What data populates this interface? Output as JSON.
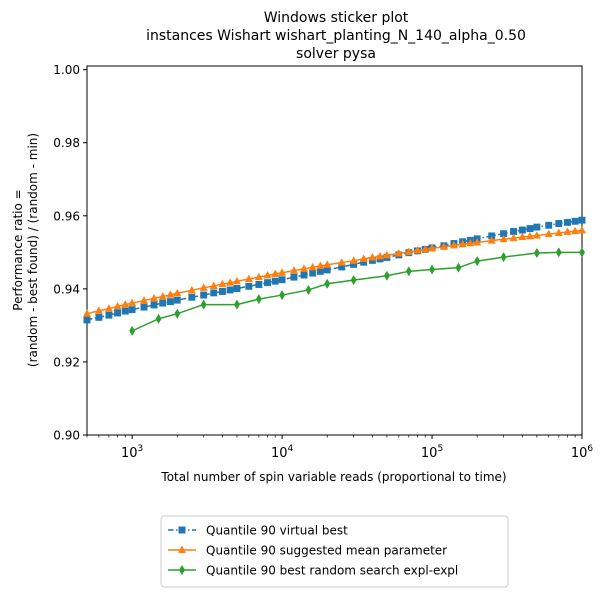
{
  "chart_data": {
    "type": "line",
    "title": [
      "Windows sticker plot",
      "instances Wishart wishart_planting_N_140_alpha_0.50",
      "solver pysa"
    ],
    "xlabel": "Total number of spin variable reads (proportional to time)",
    "ylabel": [
      "Performance ratio =",
      "(random - best found) / (random - min)"
    ],
    "xscale": "log",
    "xlim": [
      500,
      1000000
    ],
    "ylim": [
      0.9,
      1.001
    ],
    "xticks": [
      {
        "value": 1000,
        "base": "10",
        "exp": "3"
      },
      {
        "value": 10000,
        "base": "10",
        "exp": "4"
      },
      {
        "value": 100000,
        "base": "10",
        "exp": "5"
      },
      {
        "value": 1000000,
        "base": "10",
        "exp": "6"
      }
    ],
    "yticks": [
      {
        "value": 0.9,
        "label": "0.90"
      },
      {
        "value": 0.92,
        "label": "0.92"
      },
      {
        "value": 0.94,
        "label": "0.94"
      },
      {
        "value": 0.96,
        "label": "0.96"
      },
      {
        "value": 0.98,
        "label": "0.98"
      },
      {
        "value": 1.0,
        "label": "1.00"
      }
    ],
    "grid": false,
    "legend_position": "bottom-center",
    "series": [
      {
        "name": "Quantile 90 virtual best",
        "color": "#1f77b4",
        "marker": "square",
        "dashed": true,
        "x": [
          500,
          600,
          700,
          800,
          900,
          1000,
          1200,
          1400,
          1600,
          1800,
          2000,
          2500,
          3000,
          3500,
          4000,
          4500,
          5000,
          6000,
          7000,
          8000,
          9000,
          10000,
          12000,
          14000,
          16000,
          18000,
          20000,
          25000,
          30000,
          35000,
          40000,
          45000,
          50000,
          60000,
          70000,
          80000,
          90000,
          100000,
          120000,
          140000,
          160000,
          180000,
          200000,
          250000,
          300000,
          350000,
          400000,
          450000,
          500000,
          600000,
          700000,
          800000,
          900000,
          1000000
        ],
        "y": [
          0.9315,
          0.9322,
          0.9328,
          0.9334,
          0.9339,
          0.9343,
          0.935,
          0.9356,
          0.9361,
          0.9365,
          0.9369,
          0.9377,
          0.9383,
          0.9389,
          0.9393,
          0.9397,
          0.9401,
          0.9407,
          0.9412,
          0.9417,
          0.9421,
          0.9425,
          0.9432,
          0.9438,
          0.9443,
          0.9448,
          0.9452,
          0.946,
          0.9467,
          0.9473,
          0.9478,
          0.9482,
          0.9486,
          0.9493,
          0.9499,
          0.9504,
          0.9508,
          0.9512,
          0.9518,
          0.9524,
          0.9529,
          0.9533,
          0.9537,
          0.9545,
          0.9551,
          0.9557,
          0.9561,
          0.9565,
          0.9569,
          0.9574,
          0.9579,
          0.9582,
          0.9585,
          0.9588
        ]
      },
      {
        "name": "Quantile 90 suggested mean parameter",
        "color": "#ff7f0e",
        "marker": "triangle",
        "dashed": false,
        "x": [
          500,
          600,
          700,
          800,
          900,
          1000,
          1200,
          1400,
          1600,
          1800,
          2000,
          2500,
          3000,
          3500,
          4000,
          4500,
          5000,
          6000,
          7000,
          8000,
          9000,
          10000,
          12000,
          14000,
          16000,
          18000,
          20000,
          25000,
          30000,
          35000,
          40000,
          45000,
          50000,
          60000,
          70000,
          80000,
          90000,
          100000,
          120000,
          140000,
          160000,
          180000,
          200000,
          250000,
          300000,
          350000,
          400000,
          450000,
          500000,
          600000,
          700000,
          800000,
          900000,
          1000000
        ],
        "y": [
          0.9332,
          0.934,
          0.9346,
          0.9352,
          0.9357,
          0.9361,
          0.9368,
          0.9374,
          0.9379,
          0.9384,
          0.9388,
          0.9396,
          0.9403,
          0.9408,
          0.9413,
          0.9417,
          0.9421,
          0.9427,
          0.9432,
          0.9437,
          0.9441,
          0.9444,
          0.945,
          0.9455,
          0.9459,
          0.9463,
          0.9466,
          0.9472,
          0.9477,
          0.9482,
          0.9486,
          0.9489,
          0.9492,
          0.9497,
          0.9501,
          0.9505,
          0.9508,
          0.9511,
          0.9515,
          0.9519,
          0.9522,
          0.9525,
          0.9527,
          0.9532,
          0.9536,
          0.9539,
          0.9542,
          0.9544,
          0.9546,
          0.955,
          0.9553,
          0.9556,
          0.9558,
          0.956
        ]
      },
      {
        "name": "Quantile 90  best random search expl-expl",
        "color": "#2ca02c",
        "marker": "diamond",
        "dashed": false,
        "x": [
          1000,
          1500,
          2000,
          3000,
          5000,
          7000,
          10000,
          15000,
          20000,
          30000,
          50000,
          70000,
          100000,
          150000,
          200000,
          300000,
          500000,
          700000,
          1000000
        ],
        "y": [
          0.9285,
          0.9318,
          0.9332,
          0.9357,
          0.9357,
          0.9372,
          0.9383,
          0.9397,
          0.9414,
          0.9424,
          0.9436,
          0.9448,
          0.9453,
          0.9458,
          0.9476,
          0.9487,
          0.9498,
          0.95,
          0.95
        ]
      }
    ]
  }
}
